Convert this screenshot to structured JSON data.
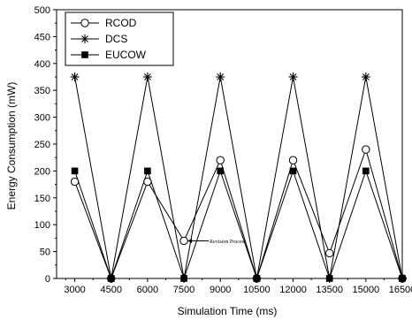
{
  "chart_data": {
    "type": "line",
    "xlabel": "Simulation Time (ms)",
    "ylabel": "Energy Consumption (mW)",
    "x": [
      3000,
      4500,
      6000,
      7500,
      9000,
      10500,
      12000,
      13500,
      15000,
      16500
    ],
    "xlim": [
      2250,
      16500
    ],
    "ylim": [
      0,
      500
    ],
    "yticks": [
      0,
      50,
      100,
      150,
      200,
      250,
      300,
      350,
      400,
      450,
      500
    ],
    "grid": false,
    "legend": "top-left",
    "series": [
      {
        "name": "RCOD",
        "marker": "open-circle",
        "color": "#000000",
        "values": [
          180,
          0,
          180,
          70,
          220,
          0,
          220,
          47,
          240,
          0
        ]
      },
      {
        "name": "DCS",
        "marker": "asterisk",
        "color": "#000000",
        "values": [
          375,
          0,
          375,
          0,
          375,
          0,
          375,
          0,
          375,
          0
        ]
      },
      {
        "name": "EUCOW",
        "marker": "filled-square",
        "color": "#000000",
        "values": [
          200,
          0,
          200,
          0,
          200,
          0,
          200,
          0,
          200,
          0
        ]
      }
    ],
    "annotations": [
      {
        "text": "Revision Process",
        "x": 7500,
        "y": 70
      }
    ]
  }
}
